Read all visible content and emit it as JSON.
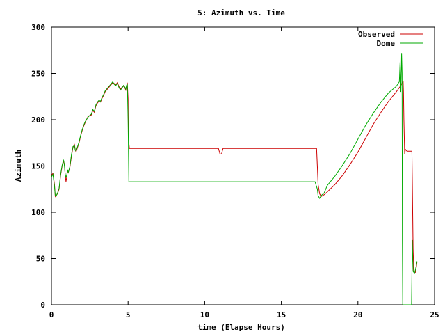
{
  "chart_data": {
    "type": "line",
    "title": "5: Azimuth vs. Time",
    "xlabel": "time (Elapse Hours)",
    "ylabel": "Azimuth",
    "xlim": [
      0,
      25
    ],
    "ylim": [
      0,
      300
    ],
    "xticks": [
      0,
      5,
      10,
      15,
      20,
      25
    ],
    "yticks": [
      0,
      50,
      100,
      150,
      200,
      250,
      300
    ],
    "grid": false,
    "legend_position": "top-right",
    "series": [
      {
        "name": "Observed",
        "color": "#cc0000",
        "x": [
          0,
          0.1,
          0.2,
          0.25,
          0.3,
          0.4,
          0.5,
          0.6,
          0.7,
          0.75,
          0.8,
          0.85,
          0.9,
          0.95,
          1.0,
          1.05,
          1.1,
          1.2,
          1.3,
          1.4,
          1.5,
          1.55,
          1.6,
          1.7,
          1.8,
          1.9,
          2.0,
          2.1,
          2.2,
          2.4,
          2.6,
          2.7,
          2.8,
          2.9,
          3.0,
          3.1,
          3.2,
          3.3,
          3.4,
          3.5,
          3.6,
          3.8,
          3.9,
          4.0,
          4.1,
          4.2,
          4.3,
          4.4,
          4.5,
          4.6,
          4.7,
          4.75,
          4.8,
          4.85,
          4.9,
          4.95,
          5.0,
          5.02,
          5.05,
          5.08,
          5.1,
          6,
          8,
          10,
          10.9,
          11.0,
          11.1,
          11.2,
          11.3,
          12,
          14,
          16,
          17.0,
          17.3,
          17.35,
          17.4,
          17.5,
          17.6,
          17.8,
          18.0,
          18.5,
          19.0,
          19.5,
          20.0,
          20.5,
          21.0,
          21.5,
          22.0,
          22.5,
          22.8,
          22.9,
          22.95,
          22.97,
          23.0,
          23.05,
          23.1,
          23.2,
          23.4,
          23.5,
          23.52,
          23.55,
          23.6,
          23.65,
          23.7,
          23.75,
          23.8,
          23.85
        ],
        "y": [
          140,
          142,
          130,
          117,
          118,
          120,
          125,
          140,
          150,
          153,
          155,
          152,
          140,
          133,
          138,
          145,
          143,
          148,
          160,
          170,
          173,
          168,
          165,
          170,
          175,
          182,
          188,
          193,
          197,
          204,
          205,
          210,
          208,
          215,
          218,
          220,
          219,
          223,
          226,
          230,
          232,
          236,
          238,
          240,
          239,
          238,
          240,
          236,
          233,
          235,
          236,
          236,
          234,
          232,
          236,
          240,
          222,
          187,
          175,
          170,
          169,
          169,
          169,
          169,
          169,
          163,
          163,
          169,
          169,
          169,
          169,
          169,
          169,
          169,
          150,
          130,
          120,
          117,
          119,
          122,
          130,
          140,
          152,
          165,
          180,
          195,
          208,
          220,
          230,
          237,
          240,
          242,
          230,
          200,
          163,
          168,
          166,
          166,
          166,
          166,
          134,
          60,
          36,
          34,
          35,
          40,
          46
        ]
      },
      {
        "name": "Dome",
        "color": "#00aa00",
        "x": [
          0,
          0.1,
          0.2,
          0.25,
          0.3,
          0.4,
          0.5,
          0.6,
          0.7,
          0.75,
          0.8,
          0.85,
          0.9,
          0.95,
          1.0,
          1.05,
          1.1,
          1.2,
          1.3,
          1.4,
          1.5,
          1.55,
          1.6,
          1.7,
          1.8,
          1.9,
          2.0,
          2.1,
          2.2,
          2.4,
          2.6,
          2.7,
          2.8,
          2.9,
          3.0,
          3.1,
          3.2,
          3.3,
          3.4,
          3.5,
          3.6,
          3.8,
          3.9,
          4.0,
          4.1,
          4.2,
          4.3,
          4.4,
          4.5,
          4.6,
          4.7,
          4.75,
          4.8,
          4.85,
          4.9,
          4.95,
          5.0,
          5.05,
          5.1,
          8,
          12,
          16,
          17.2,
          17.35,
          17.4,
          17.5,
          17.6,
          17.8,
          18.0,
          18.5,
          19.0,
          19.5,
          20.0,
          20.5,
          21.0,
          21.5,
          22.0,
          22.5,
          22.7,
          22.75,
          22.8,
          22.85,
          22.88,
          22.9,
          22.92,
          23.0,
          23.3,
          23.5,
          23.55,
          23.6,
          23.65,
          23.7,
          23.75,
          23.8,
          23.85
        ],
        "y": [
          138,
          141,
          128,
          118,
          117,
          121,
          126,
          141,
          151,
          154,
          156,
          150,
          141,
          138,
          140,
          146,
          143,
          149,
          162,
          171,
          172,
          167,
          166,
          171,
          176,
          183,
          189,
          194,
          198,
          203,
          206,
          211,
          209,
          216,
          219,
          221,
          220,
          224,
          227,
          231,
          233,
          237,
          239,
          241,
          238,
          237,
          239,
          235,
          232,
          234,
          237,
          236,
          235,
          233,
          237,
          239,
          200,
          133,
          133,
          133,
          133,
          133,
          133,
          125,
          118,
          115,
          118,
          121,
          129,
          139,
          151,
          164,
          179,
          194,
          207,
          219,
          229,
          236,
          241,
          262,
          230,
          272,
          250,
          70,
          0,
          0,
          0,
          0,
          70,
          36,
          35,
          34,
          38,
          42,
          47
        ]
      }
    ]
  }
}
